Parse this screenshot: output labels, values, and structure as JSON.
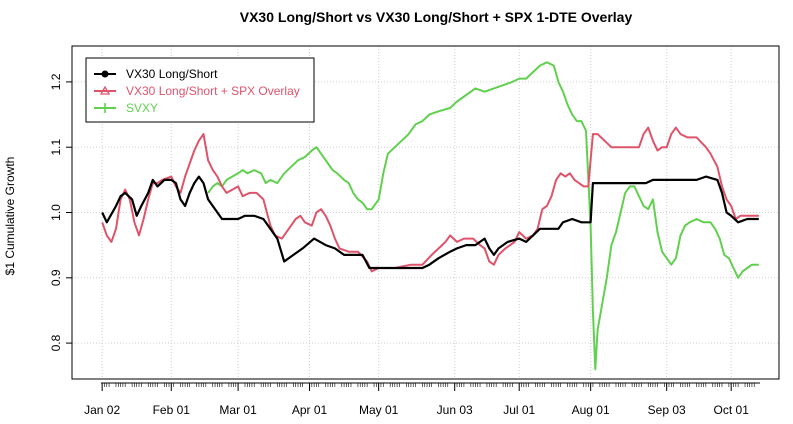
{
  "chart_data": {
    "type": "line",
    "title": "VX30 Long/Short vs VX30 Long/Short + SPX 1-DTE Overlay",
    "xlabel": "",
    "ylabel": "$1 Cumulative Growth",
    "x_tick_labels": [
      "Jan 02",
      "Feb 01",
      "Mar 01",
      "Apr 01",
      "May 01",
      "Jun 03",
      "Jul 01",
      "Aug 01",
      "Sep 03",
      "Oct 01"
    ],
    "y_ticks": [
      0.8,
      0.9,
      1.0,
      1.1,
      1.2
    ],
    "ylim": [
      0.745,
      1.255
    ],
    "grid": true,
    "legend_position": "top-left",
    "series": [
      {
        "name": "VX30 Long/Short",
        "color": "#000000",
        "points": [
          [
            "01-02",
            1.0
          ],
          [
            "01-04",
            0.985
          ],
          [
            "01-08",
            1.01
          ],
          [
            "01-10",
            1.025
          ],
          [
            "01-12",
            1.03
          ],
          [
            "01-15",
            1.02
          ],
          [
            "01-17",
            0.995
          ],
          [
            "01-19",
            1.01
          ],
          [
            "01-22",
            1.03
          ],
          [
            "01-24",
            1.05
          ],
          [
            "01-26",
            1.04
          ],
          [
            "01-29",
            1.05
          ],
          [
            "02-01",
            1.05
          ],
          [
            "02-03",
            1.045
          ],
          [
            "02-05",
            1.02
          ],
          [
            "02-07",
            1.01
          ],
          [
            "02-09",
            1.03
          ],
          [
            "02-11",
            1.045
          ],
          [
            "02-13",
            1.055
          ],
          [
            "02-15",
            1.045
          ],
          [
            "02-17",
            1.02
          ],
          [
            "02-19",
            1.01
          ],
          [
            "02-21",
            1.0
          ],
          [
            "02-23",
            0.99
          ],
          [
            "03-01",
            0.99
          ],
          [
            "03-04",
            0.995
          ],
          [
            "03-08",
            0.995
          ],
          [
            "03-12",
            0.99
          ],
          [
            "03-15",
            0.975
          ],
          [
            "03-18",
            0.96
          ],
          [
            "03-21",
            0.925
          ],
          [
            "03-25",
            0.935
          ],
          [
            "03-29",
            0.945
          ],
          [
            "04-03",
            0.96
          ],
          [
            "04-08",
            0.95
          ],
          [
            "04-12",
            0.945
          ],
          [
            "04-16",
            0.935
          ],
          [
            "04-20",
            0.935
          ],
          [
            "04-24",
            0.935
          ],
          [
            "04-27",
            0.915
          ],
          [
            "05-01",
            0.915
          ],
          [
            "05-10",
            0.915
          ],
          [
            "05-20",
            0.915
          ],
          [
            "05-23",
            0.92
          ],
          [
            "05-27",
            0.93
          ],
          [
            "06-01",
            0.94
          ],
          [
            "06-04",
            0.945
          ],
          [
            "06-08",
            0.95
          ],
          [
            "06-12",
            0.95
          ],
          [
            "06-16",
            0.96
          ],
          [
            "06-18",
            0.945
          ],
          [
            "06-20",
            0.935
          ],
          [
            "06-22",
            0.945
          ],
          [
            "06-26",
            0.955
          ],
          [
            "07-01",
            0.96
          ],
          [
            "07-04",
            0.955
          ],
          [
            "07-07",
            0.965
          ],
          [
            "07-10",
            0.975
          ],
          [
            "07-14",
            0.975
          ],
          [
            "07-18",
            0.975
          ],
          [
            "07-20",
            0.985
          ],
          [
            "07-24",
            0.99
          ],
          [
            "07-28",
            0.985
          ],
          [
            "08-01",
            0.985
          ],
          [
            "08-02",
            1.045
          ],
          [
            "08-10",
            1.045
          ],
          [
            "08-20",
            1.045
          ],
          [
            "08-25",
            1.045
          ],
          [
            "08-28",
            1.05
          ],
          [
            "09-03",
            1.05
          ],
          [
            "09-10",
            1.05
          ],
          [
            "09-16",
            1.05
          ],
          [
            "09-20",
            1.055
          ],
          [
            "09-25",
            1.05
          ],
          [
            "09-27",
            1.03
          ],
          [
            "09-29",
            1.0
          ],
          [
            "10-01",
            0.995
          ],
          [
            "10-04",
            0.985
          ],
          [
            "10-08",
            0.99
          ],
          [
            "10-13",
            0.99
          ]
        ]
      },
      {
        "name": "VX30 Long/Short + SPX Overlay",
        "color": "#DF536B",
        "points": [
          [
            "01-02",
            0.985
          ],
          [
            "01-04",
            0.965
          ],
          [
            "01-06",
            0.955
          ],
          [
            "01-08",
            0.975
          ],
          [
            "01-10",
            1.02
          ],
          [
            "01-12",
            1.035
          ],
          [
            "01-14",
            1.02
          ],
          [
            "01-16",
            0.985
          ],
          [
            "01-18",
            0.965
          ],
          [
            "01-20",
            0.99
          ],
          [
            "01-22",
            1.02
          ],
          [
            "01-24",
            1.045
          ],
          [
            "01-26",
            1.045
          ],
          [
            "01-28",
            1.05
          ],
          [
            "02-01",
            1.055
          ],
          [
            "02-03",
            1.04
          ],
          [
            "02-05",
            1.03
          ],
          [
            "02-07",
            1.055
          ],
          [
            "02-09",
            1.075
          ],
          [
            "02-11",
            1.095
          ],
          [
            "02-13",
            1.11
          ],
          [
            "02-15",
            1.12
          ],
          [
            "02-17",
            1.08
          ],
          [
            "02-19",
            1.065
          ],
          [
            "02-21",
            1.055
          ],
          [
            "02-23",
            1.04
          ],
          [
            "02-25",
            1.03
          ],
          [
            "03-01",
            1.04
          ],
          [
            "03-03",
            1.025
          ],
          [
            "03-06",
            1.03
          ],
          [
            "03-09",
            1.03
          ],
          [
            "03-12",
            1.02
          ],
          [
            "03-15",
            0.98
          ],
          [
            "03-17",
            0.965
          ],
          [
            "03-20",
            0.96
          ],
          [
            "03-23",
            0.975
          ],
          [
            "03-26",
            0.99
          ],
          [
            "03-28",
            0.995
          ],
          [
            "03-30",
            0.985
          ],
          [
            "04-02",
            0.98
          ],
          [
            "04-04",
            1.0
          ],
          [
            "04-06",
            1.005
          ],
          [
            "04-08",
            0.995
          ],
          [
            "04-10",
            0.98
          ],
          [
            "04-12",
            0.96
          ],
          [
            "04-14",
            0.945
          ],
          [
            "04-18",
            0.94
          ],
          [
            "04-22",
            0.94
          ],
          [
            "04-26",
            0.925
          ],
          [
            "04-28",
            0.91
          ],
          [
            "05-01",
            0.915
          ],
          [
            "05-08",
            0.915
          ],
          [
            "05-15",
            0.92
          ],
          [
            "05-20",
            0.92
          ],
          [
            "05-24",
            0.935
          ],
          [
            "05-27",
            0.945
          ],
          [
            "05-30",
            0.955
          ],
          [
            "06-01",
            0.965
          ],
          [
            "06-04",
            0.955
          ],
          [
            "06-07",
            0.96
          ],
          [
            "06-11",
            0.96
          ],
          [
            "06-14",
            0.95
          ],
          [
            "06-16",
            0.945
          ],
          [
            "06-18",
            0.925
          ],
          [
            "06-20",
            0.92
          ],
          [
            "06-22",
            0.935
          ],
          [
            "06-25",
            0.945
          ],
          [
            "06-29",
            0.955
          ],
          [
            "07-01",
            0.97
          ],
          [
            "07-04",
            0.96
          ],
          [
            "07-07",
            0.965
          ],
          [
            "07-09",
            0.975
          ],
          [
            "07-11",
            1.005
          ],
          [
            "07-13",
            1.01
          ],
          [
            "07-15",
            1.025
          ],
          [
            "07-17",
            1.05
          ],
          [
            "07-19",
            1.06
          ],
          [
            "07-21",
            1.055
          ],
          [
            "07-23",
            1.06
          ],
          [
            "07-25",
            1.05
          ],
          [
            "07-29",
            1.04
          ],
          [
            "07-31",
            1.04
          ],
          [
            "08-02",
            1.12
          ],
          [
            "08-04",
            1.12
          ],
          [
            "08-07",
            1.11
          ],
          [
            "08-10",
            1.1
          ],
          [
            "08-15",
            1.1
          ],
          [
            "08-19",
            1.1
          ],
          [
            "08-22",
            1.1
          ],
          [
            "08-24",
            1.12
          ],
          [
            "08-26",
            1.13
          ],
          [
            "08-28",
            1.11
          ],
          [
            "08-30",
            1.095
          ],
          [
            "09-01",
            1.1
          ],
          [
            "09-03",
            1.1
          ],
          [
            "09-05",
            1.12
          ],
          [
            "09-07",
            1.13
          ],
          [
            "09-09",
            1.12
          ],
          [
            "09-12",
            1.115
          ],
          [
            "09-16",
            1.115
          ],
          [
            "09-20",
            1.1
          ],
          [
            "09-22",
            1.09
          ],
          [
            "09-25",
            1.07
          ],
          [
            "09-27",
            1.04
          ],
          [
            "09-29",
            1.02
          ],
          [
            "10-01",
            1.01
          ],
          [
            "10-03",
            0.99
          ],
          [
            "10-05",
            0.995
          ],
          [
            "10-08",
            0.995
          ],
          [
            "10-13",
            0.995
          ]
        ]
      },
      {
        "name": "SVXY",
        "color": "#61D04F",
        "points": [
          [
            "02-17",
            1.03
          ],
          [
            "02-19",
            1.04
          ],
          [
            "02-21",
            1.045
          ],
          [
            "02-23",
            1.04
          ],
          [
            "02-25",
            1.05
          ],
          [
            "03-01",
            1.06
          ],
          [
            "03-03",
            1.065
          ],
          [
            "03-05",
            1.06
          ],
          [
            "03-08",
            1.065
          ],
          [
            "03-11",
            1.06
          ],
          [
            "03-13",
            1.045
          ],
          [
            "03-15",
            1.05
          ],
          [
            "03-18",
            1.045
          ],
          [
            "03-21",
            1.06
          ],
          [
            "03-24",
            1.07
          ],
          [
            "03-27",
            1.08
          ],
          [
            "03-30",
            1.085
          ],
          [
            "04-02",
            1.095
          ],
          [
            "04-04",
            1.1
          ],
          [
            "04-06",
            1.09
          ],
          [
            "04-09",
            1.075
          ],
          [
            "04-11",
            1.065
          ],
          [
            "04-13",
            1.06
          ],
          [
            "04-16",
            1.05
          ],
          [
            "04-18",
            1.045
          ],
          [
            "04-20",
            1.03
          ],
          [
            "04-22",
            1.02
          ],
          [
            "04-24",
            1.015
          ],
          [
            "04-26",
            1.005
          ],
          [
            "04-28",
            1.005
          ],
          [
            "05-01",
            1.02
          ],
          [
            "05-03",
            1.06
          ],
          [
            "05-05",
            1.09
          ],
          [
            "05-08",
            1.1
          ],
          [
            "05-11",
            1.11
          ],
          [
            "05-14",
            1.12
          ],
          [
            "05-17",
            1.135
          ],
          [
            "05-20",
            1.14
          ],
          [
            "05-23",
            1.15
          ],
          [
            "05-27",
            1.155
          ],
          [
            "06-01",
            1.16
          ],
          [
            "06-04",
            1.17
          ],
          [
            "06-08",
            1.18
          ],
          [
            "06-12",
            1.19
          ],
          [
            "06-16",
            1.185
          ],
          [
            "06-20",
            1.19
          ],
          [
            "06-24",
            1.195
          ],
          [
            "06-28",
            1.2
          ],
          [
            "07-01",
            1.205
          ],
          [
            "07-04",
            1.205
          ],
          [
            "07-07",
            1.215
          ],
          [
            "07-10",
            1.225
          ],
          [
            "07-13",
            1.23
          ],
          [
            "07-16",
            1.225
          ],
          [
            "07-18",
            1.2
          ],
          [
            "07-20",
            1.185
          ],
          [
            "07-22",
            1.165
          ],
          [
            "07-24",
            1.15
          ],
          [
            "07-26",
            1.14
          ],
          [
            "07-28",
            1.14
          ],
          [
            "07-30",
            1.125
          ],
          [
            "08-01",
            0.98
          ],
          [
            "08-02",
            0.85
          ],
          [
            "08-03",
            0.76
          ],
          [
            "08-04",
            0.82
          ],
          [
            "08-06",
            0.86
          ],
          [
            "08-08",
            0.9
          ],
          [
            "08-10",
            0.95
          ],
          [
            "08-12",
            0.97
          ],
          [
            "08-14",
            1.0
          ],
          [
            "08-16",
            1.03
          ],
          [
            "08-18",
            1.04
          ],
          [
            "08-20",
            1.04
          ],
          [
            "08-22",
            1.025
          ],
          [
            "08-24",
            1.01
          ],
          [
            "08-26",
            1.005
          ],
          [
            "08-28",
            1.02
          ],
          [
            "08-30",
            0.97
          ],
          [
            "09-01",
            0.94
          ],
          [
            "09-03",
            0.93
          ],
          [
            "09-05",
            0.92
          ],
          [
            "09-07",
            0.93
          ],
          [
            "09-09",
            0.965
          ],
          [
            "09-11",
            0.98
          ],
          [
            "09-13",
            0.985
          ],
          [
            "09-16",
            0.99
          ],
          [
            "09-19",
            0.985
          ],
          [
            "09-22",
            0.985
          ],
          [
            "09-24",
            0.975
          ],
          [
            "09-26",
            0.96
          ],
          [
            "09-28",
            0.935
          ],
          [
            "09-30",
            0.93
          ],
          [
            "10-02",
            0.915
          ],
          [
            "10-04",
            0.9
          ],
          [
            "10-06",
            0.91
          ],
          [
            "10-08",
            0.915
          ],
          [
            "10-10",
            0.92
          ],
          [
            "10-13",
            0.92
          ]
        ]
      }
    ]
  }
}
